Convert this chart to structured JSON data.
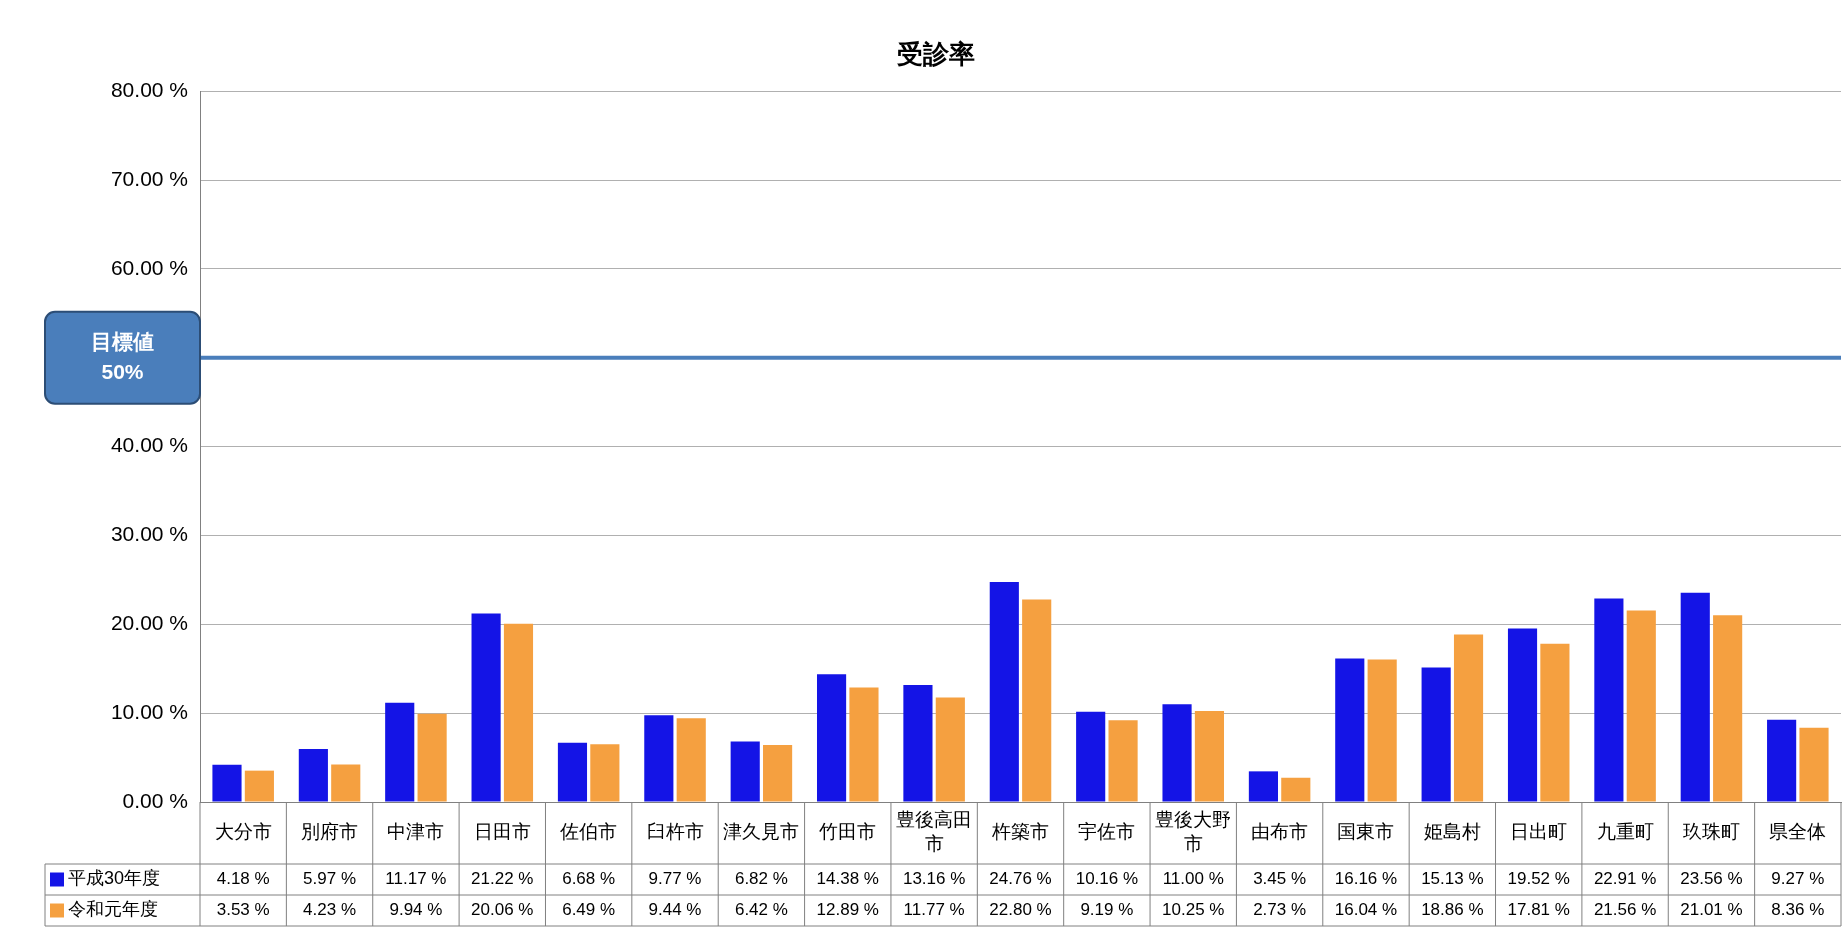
{
  "chart_data": {
    "type": "bar",
    "title": "受診率",
    "categories": [
      "大分市",
      "別府市",
      "中津市",
      "日田市",
      "佐伯市",
      "臼杵市",
      "津久見市",
      "竹田市",
      "豊後高田市",
      "杵築市",
      "宇佐市",
      "豊後大野市",
      "由布市",
      "国東市",
      "姫島村",
      "日出町",
      "九重町",
      "玖珠町",
      "県全体"
    ],
    "series": [
      {
        "name": "平成30年度",
        "color": "#1414e6",
        "values": [
          4.18,
          5.97,
          11.17,
          21.22,
          6.68,
          9.77,
          6.82,
          14.38,
          13.16,
          24.76,
          10.16,
          11.0,
          3.45,
          16.16,
          15.13,
          19.52,
          22.91,
          23.56,
          9.27
        ],
        "value_labels": [
          "4.18 %",
          "5.97 %",
          "11.17 %",
          "21.22 %",
          "6.68 %",
          "9.77 %",
          "6.82 %",
          "14.38 %",
          "13.16 %",
          "24.76 %",
          "10.16 %",
          "11.00 %",
          "3.45 %",
          "16.16 %",
          "15.13 %",
          "19.52 %",
          "22.91 %",
          "23.56 %",
          "9.27 %"
        ]
      },
      {
        "name": "令和元年度",
        "color": "#f5a040",
        "values": [
          3.53,
          4.23,
          9.94,
          20.06,
          6.49,
          9.44,
          6.42,
          12.89,
          11.77,
          22.8,
          9.19,
          10.25,
          2.73,
          16.04,
          18.86,
          17.81,
          21.56,
          21.01,
          8.36
        ],
        "value_labels": [
          "3.53 %",
          "4.23 %",
          "9.94 %",
          "20.06 %",
          "6.49 %",
          "9.44 %",
          "6.42 %",
          "12.89 %",
          "11.77 %",
          "22.80 %",
          "9.19 %",
          "10.25 %",
          "2.73 %",
          "16.04 %",
          "18.86 %",
          "17.81 %",
          "21.56 %",
          "21.01 %",
          "8.36 %"
        ]
      }
    ],
    "ylim": [
      0,
      80
    ],
    "yticks": [
      {
        "value": 0,
        "label": "0.00 %"
      },
      {
        "value": 10,
        "label": "10.00 %"
      },
      {
        "value": 20,
        "label": "20.00 %"
      },
      {
        "value": 30,
        "label": "30.00 %"
      },
      {
        "value": 40,
        "label": "40.00 %"
      },
      {
        "value": 60,
        "label": "60.00 %"
      },
      {
        "value": 70,
        "label": "70.00 %"
      },
      {
        "value": 80,
        "label": "80.00 %"
      }
    ],
    "grid": "y",
    "legend": "bottom",
    "ref_lines": [
      {
        "axis": "y",
        "value": 50,
        "label": "目標値\n50%",
        "color": "#4a7ebb"
      }
    ]
  }
}
